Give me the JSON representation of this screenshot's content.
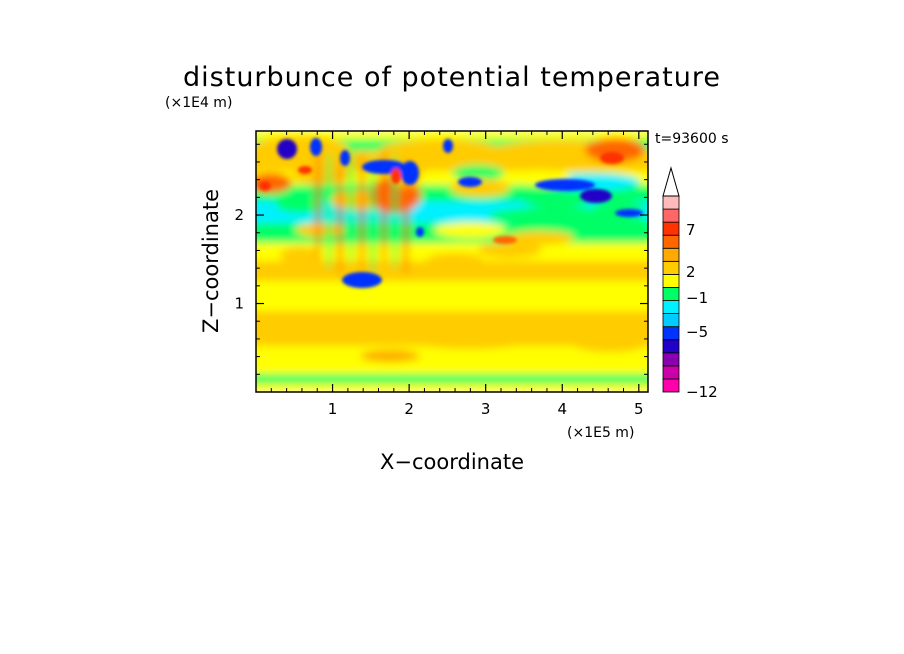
{
  "chart_data": {
    "type": "heatmap",
    "title": "disturbunce of potential temperature",
    "xlabel": "X−coordinate",
    "ylabel": "Z−coordinate",
    "x_unit": "(×1E5 m)",
    "y_unit": "(×1E4 m)",
    "time_label": "t=93600 s",
    "xlim": [
      0,
      5.12
    ],
    "ylim": [
      0,
      2.95
    ],
    "x_ticks": [
      "1",
      "2",
      "3",
      "4",
      "5"
    ],
    "y_ticks": [
      "1",
      "2"
    ],
    "grid": false,
    "colorbar": {
      "placement": "right",
      "extend_max": true,
      "tick_labels": [
        "7",
        "2",
        "−1",
        "−5",
        "−12"
      ],
      "bins_bottom_to_top": [
        "#ff00aa",
        "#cc00aa",
        "#8800b0",
        "#2200c8",
        "#0033ff",
        "#00ccff",
        "#00f0ff",
        "#00ff66",
        "#ffff00",
        "#ffcc00",
        "#ffaa00",
        "#ff6600",
        "#ff3300",
        "#ff6666",
        "#ffbbbb"
      ]
    }
  }
}
